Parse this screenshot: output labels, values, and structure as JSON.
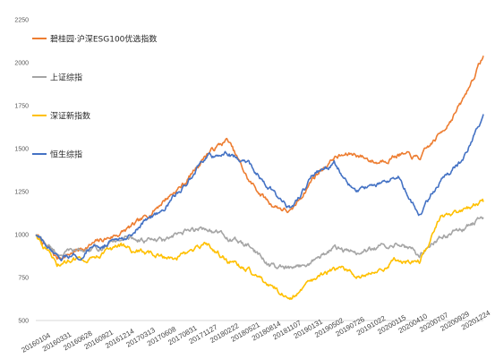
{
  "chart_data": {
    "type": "line",
    "title": "",
    "xlabel": "",
    "ylabel": "",
    "ylim": [
      500,
      2250
    ],
    "yticks": [
      500,
      750,
      1000,
      1250,
      1500,
      1750,
      2000,
      2250
    ],
    "y_tick_labels": [
      "500",
      "750",
      "1000",
      "1250",
      "1500",
      "1750",
      "2000",
      "2250"
    ],
    "x_tick_labels": [
      "20160104",
      "20160331",
      "20160628",
      "20160921",
      "20161214",
      "20170313",
      "20170608",
      "20170831",
      "20171127",
      "20180222",
      "20180521",
      "20180814",
      "20181107",
      "20190131",
      "20190502",
      "20190726",
      "20191022",
      "20200115",
      "20200410",
      "20200707",
      "20200929",
      "20201224"
    ],
    "grid": false,
    "legend_position": "top-left",
    "x": [
      "20160104",
      "20160331",
      "20160628",
      "20160921",
      "20161214",
      "20170313",
      "20170608",
      "20170831",
      "20171127",
      "20180222",
      "20180521",
      "20180814",
      "20181107",
      "20190131",
      "20190502",
      "20190726",
      "20191022",
      "20200115",
      "20200410",
      "20200707",
      "20200929",
      "20201224"
    ],
    "series": [
      {
        "name": "碧桂园·沪深ESG100优选指数",
        "color": "#ED7D31",
        "values": [
          1000,
          860,
          910,
          960,
          1010,
          1080,
          1200,
          1300,
          1470,
          1550,
          1310,
          1180,
          1130,
          1330,
          1450,
          1470,
          1420,
          1470,
          1440,
          1590,
          1770,
          2040
        ]
      },
      {
        "name": "上证综指",
        "color": "#A5A5A5",
        "values": [
          1000,
          890,
          900,
          920,
          980,
          970,
          960,
          1010,
          1040,
          980,
          930,
          820,
          790,
          850,
          920,
          890,
          920,
          960,
          880,
          990,
          1030,
          1100
        ]
      },
      {
        "name": "深证新指数",
        "color": "#FFC000",
        "values": [
          1000,
          820,
          860,
          890,
          930,
          900,
          870,
          880,
          940,
          850,
          790,
          690,
          640,
          730,
          800,
          770,
          790,
          860,
          840,
          1090,
          1120,
          1190
        ]
      },
      {
        "name": "恒生综指",
        "color": "#4472C4",
        "values": [
          1000,
          850,
          880,
          940,
          970,
          1060,
          1160,
          1280,
          1450,
          1470,
          1410,
          1270,
          1150,
          1340,
          1410,
          1260,
          1290,
          1330,
          1120,
          1320,
          1430,
          1700
        ]
      }
    ]
  }
}
